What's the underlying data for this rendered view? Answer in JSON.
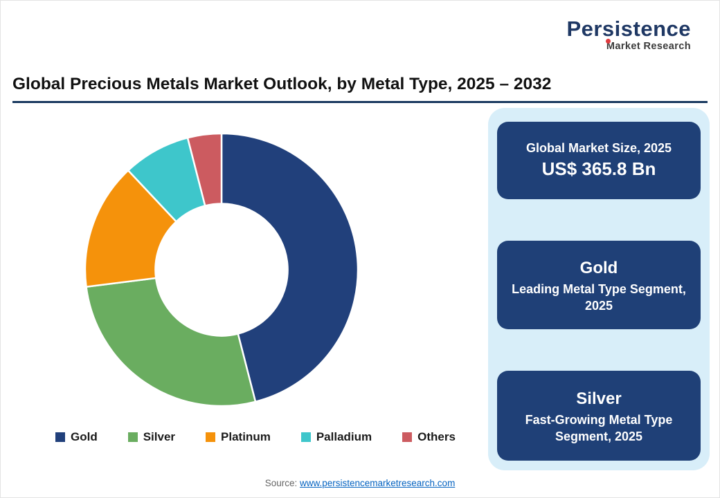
{
  "logo": {
    "name": "Persistence",
    "tagline": "Market Research",
    "name_color": "#1f3864",
    "accent_color": "#e03a3e"
  },
  "title": "Global Precious Metals Market Outlook, by Metal Type, 2025 – 2032",
  "chart_data": {
    "type": "pie",
    "subtype": "donut",
    "title": "Global Precious Metals Market Outlook, by Metal Type, 2025 – 2032",
    "categories": [
      "Gold",
      "Silver",
      "Platinum",
      "Palladium",
      "Others"
    ],
    "values": [
      46,
      27,
      15,
      8,
      4
    ],
    "unit": "percent share (estimated from segment angles)",
    "colors": [
      "#21407b",
      "#6aad60",
      "#f5920b",
      "#3ec6cb",
      "#cc5b60"
    ],
    "start_angle_deg": 0,
    "direction": "clockwise",
    "inner_radius_ratio": 0.485,
    "legend_position": "bottom",
    "legend_entries": [
      "Gold",
      "Silver",
      "Platinum",
      "Palladium",
      "Others"
    ]
  },
  "panel": {
    "background": "#d8eef9",
    "box_color": "#1f4077",
    "boxes": [
      {
        "line1": "Global Market Size, 2025",
        "line2": "US$ 365.8 Bn"
      },
      {
        "line1": "Gold",
        "line2": "Leading Metal Type Segment, 2025"
      },
      {
        "line1": "Silver",
        "line2": "Fast-Growing Metal Type Segment, 2025"
      }
    ]
  },
  "source": {
    "label": "Source:",
    "link": "www.persistencemarketresearch.com"
  }
}
